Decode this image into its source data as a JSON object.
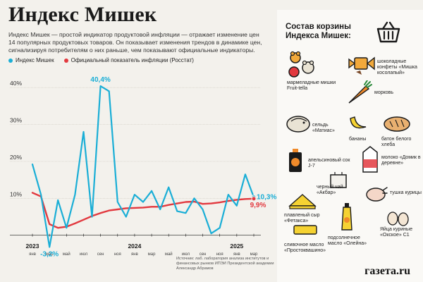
{
  "header": {
    "title": "Индекс Мишек",
    "description": "Индекс Мишек — простой индикатор продуктовой инфляции — отражает изменение цен 14 популярных продуктовых товаров. Он показывает изменения трендов в динамике цен, сигнализируя потребителям о них раньше, чем показывают официальные индикаторы."
  },
  "legend": {
    "series_a": "Индекс Мишек",
    "series_b": "Официальный показатель инфляции (Росстат)"
  },
  "source": "Источник: лаб. лаборатория анализа институтов и финансовых рынков ИПЭИ Президентской академии Александр Абрамов",
  "colors": {
    "mishki": "#1aaed6",
    "rosstat": "#e2393f",
    "accent_dark": "#1a1a1a"
  },
  "chart_data": {
    "type": "line",
    "title": "Индекс Мишек",
    "ylabel": "",
    "xlabel": "",
    "ylim": [
      -3.5,
      45
    ],
    "y_ticks": [
      10,
      20,
      30,
      40
    ],
    "y_tick_labels": [
      "10%",
      "20%",
      "30%",
      "40%"
    ],
    "year_labels": [
      {
        "index": 0,
        "label": "2023"
      },
      {
        "index": 12,
        "label": "2024"
      },
      {
        "index": 24,
        "label": "2025"
      }
    ],
    "x_labels": [
      {
        "index": 0,
        "label": "янв"
      },
      {
        "index": 2,
        "label": "мар"
      },
      {
        "index": 4,
        "label": "май"
      },
      {
        "index": 6,
        "label": "июл"
      },
      {
        "index": 8,
        "label": "сен"
      },
      {
        "index": 10,
        "label": "ноя"
      },
      {
        "index": 12,
        "label": "янв"
      },
      {
        "index": 14,
        "label": "мар"
      },
      {
        "index": 16,
        "label": "май"
      },
      {
        "index": 18,
        "label": "июл"
      },
      {
        "index": 20,
        "label": "сен"
      },
      {
        "index": 22,
        "label": "ноя"
      },
      {
        "index": 24,
        "label": "янв"
      },
      {
        "index": 26,
        "label": "мар"
      }
    ],
    "series": [
      {
        "name": "Индекс Мишек",
        "values": [
          19.2,
          11.0,
          -3.2,
          9.5,
          2.0,
          11.0,
          28.0,
          5.0,
          40.4,
          39.0,
          9.0,
          5.0,
          11.0,
          9.0,
          12.0,
          7.0,
          13.0,
          6.5,
          6.0,
          10.0,
          7.0,
          0.5,
          2.0,
          11.0,
          8.0,
          16.5,
          10.3
        ]
      },
      {
        "name": "Официальный показатель инфляции (Росстат)",
        "values": [
          11.5,
          10.5,
          3.0,
          2.0,
          2.3,
          3.2,
          4.2,
          5.2,
          6.0,
          6.7,
          7.0,
          7.3,
          7.4,
          7.5,
          7.7,
          7.7,
          8.2,
          8.6,
          9.0,
          9.1,
          8.5,
          8.6,
          8.9,
          9.3,
          9.6,
          9.8,
          9.9
        ]
      }
    ],
    "annotations": [
      {
        "index": 8,
        "series": 0,
        "label": "40,4%"
      },
      {
        "index": 2,
        "series": 0,
        "label": "-3,2%"
      },
      {
        "index": 26,
        "series": 0,
        "label": "10,3%"
      },
      {
        "index": 26,
        "series": 1,
        "label": "9,9%"
      }
    ]
  },
  "basket": {
    "title": "Состав корзины Индекса Мишек:",
    "items": [
      {
        "label": "шоколадные конфеты «Мишка косолапый»",
        "icon": "candy-icon"
      },
      {
        "label": "мармеладные мишки Fruit-tella",
        "icon": "gummy-bears-icon"
      },
      {
        "label": "морковь",
        "icon": "carrot-icon"
      },
      {
        "label": "сельдь «Матиас»",
        "icon": "herring-icon"
      },
      {
        "label": "бананы",
        "icon": "banana-icon"
      },
      {
        "label": "батон белого хлеба",
        "icon": "bread-icon"
      },
      {
        "label": "апельсиновый сок J-7",
        "icon": "juice-icon"
      },
      {
        "label": "молоко «Домик в деревне»",
        "icon": "milk-icon"
      },
      {
        "label": "черный чай «Акбар»",
        "icon": "tea-icon"
      },
      {
        "label": "тушка курицы",
        "icon": "chicken-icon"
      },
      {
        "label": "плавленый сыр «Фетакса»",
        "icon": "cheese-icon"
      },
      {
        "label": "подсолнечное масло «Олейна»",
        "icon": "oil-icon"
      },
      {
        "label": "Яйца куриные «Окское» С1",
        "icon": "eggs-icon"
      },
      {
        "label": "сливочное масло «Простоквашино»",
        "icon": "butter-icon"
      }
    ]
  },
  "brand": "газета.ru"
}
